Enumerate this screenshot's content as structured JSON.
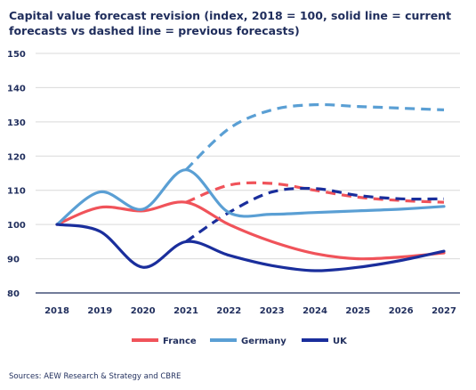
{
  "chart_data": {
    "type": "line",
    "title": "Capital value forecast revision (index, 2018 = 100, solid line = current forecasts vs dashed line = previous forecasts)",
    "x": [
      "2018",
      "2019",
      "2020",
      "2021",
      "2022",
      "2023",
      "2024",
      "2025",
      "2026",
      "2027"
    ],
    "ylim": [
      80,
      150
    ],
    "yticks": [
      80,
      90,
      100,
      110,
      120,
      130,
      140,
      150
    ],
    "grid": true,
    "legend_position": "bottom",
    "series": [
      {
        "name": "France",
        "color": "#f0535a",
        "style": "solid",
        "values": [
          100,
          105,
          104,
          106.5,
          100,
          95,
          91.5,
          90,
          90.5,
          91.7
        ]
      },
      {
        "name": "France",
        "color": "#f0535a",
        "style": "dashed",
        "in_legend": false,
        "values": [
          null,
          null,
          null,
          106.5,
          111.5,
          112,
          110,
          108,
          107,
          106.5
        ]
      },
      {
        "name": "Germany",
        "color": "#5a9fd4",
        "style": "solid",
        "values": [
          100,
          109.5,
          104.5,
          116,
          103.5,
          103,
          103.5,
          104,
          104.5,
          105.3
        ]
      },
      {
        "name": "Germany",
        "color": "#5a9fd4",
        "style": "dashed",
        "in_legend": false,
        "values": [
          null,
          null,
          null,
          116,
          128,
          133.5,
          135,
          134.5,
          134,
          133.5
        ]
      },
      {
        "name": "UK",
        "color": "#1a2e9c",
        "style": "solid",
        "values": [
          100,
          98,
          87.5,
          95,
          91,
          88,
          86.5,
          87.5,
          89.5,
          92.2
        ]
      },
      {
        "name": "UK",
        "color": "#1a2e9c",
        "style": "dashed",
        "in_legend": false,
        "values": [
          null,
          null,
          null,
          95,
          103.5,
          109.5,
          110.5,
          108.5,
          107.5,
          107.5
        ]
      }
    ]
  },
  "source": "Sources: AEW Research & Strategy and CBRE"
}
